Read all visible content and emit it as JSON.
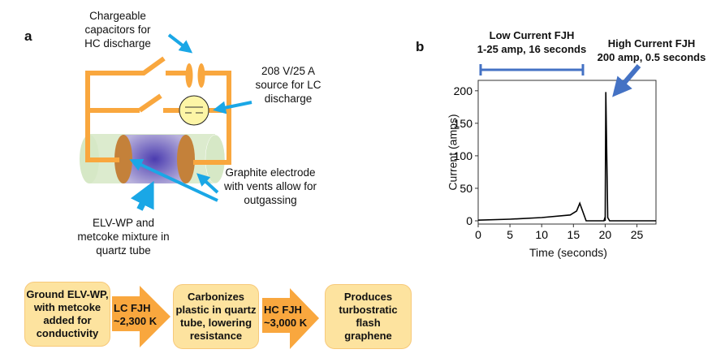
{
  "panel_a": {
    "label": "a",
    "capacitor_label": "Chargeable\ncapacitors for\nHC discharge",
    "source_label": "208 V/25 A\nsource for LC\ndischarge",
    "electrode_label": "Graphite electrode\nwith vents allow for\noutgassing",
    "tube_label": "ELV-WP and\nmetcoke mixture in\nquartz tube"
  },
  "flow": {
    "steps": [
      "Ground ELV-WP,\nwith metcoke\nadded for\nconductivity",
      "Carbonizes\nplastic in quartz\ntube, lowering\nresistance",
      "Produces\nturbostratic flash\ngraphene"
    ],
    "arrows": [
      "LC FJH\n~2,300 K",
      "HC FJH\n~3,000 K"
    ]
  },
  "colors": {
    "wire": "#f9a73e",
    "arrow_blue": "#1aa7e6",
    "box": "#fde39f",
    "flow_arrow": "#f9a73e",
    "chart_blue": "#4472c4"
  },
  "chart_data": {
    "type": "line",
    "panel_label": "b",
    "xlabel": "Time (seconds)",
    "ylabel": "Current (amps)",
    "xlim": [
      0,
      28
    ],
    "ylim": [
      -5,
      216
    ],
    "xticks": [
      0,
      5,
      10,
      15,
      20,
      25
    ],
    "yticks": [
      0,
      50,
      100,
      150,
      200
    ],
    "series": [
      {
        "name": "Current",
        "x": [
          0,
          5,
          10,
          14.5,
          15.5,
          16,
          17,
          19.8,
          19.9,
          20,
          20.1,
          20.4,
          20.7,
          28
        ],
        "y": [
          1,
          2.5,
          5,
          9,
          15,
          27,
          0,
          0,
          3,
          0,
          198,
          5,
          0,
          0
        ]
      }
    ],
    "annotations": [
      {
        "text": "Low Current FJH\n1-25 amp, 16 seconds",
        "range": [
          0.3,
          16.5
        ]
      },
      {
        "text": "High Current FJH\n200 amp, 0.5 seconds",
        "points_to": [
          20.1,
          198
        ]
      }
    ]
  }
}
